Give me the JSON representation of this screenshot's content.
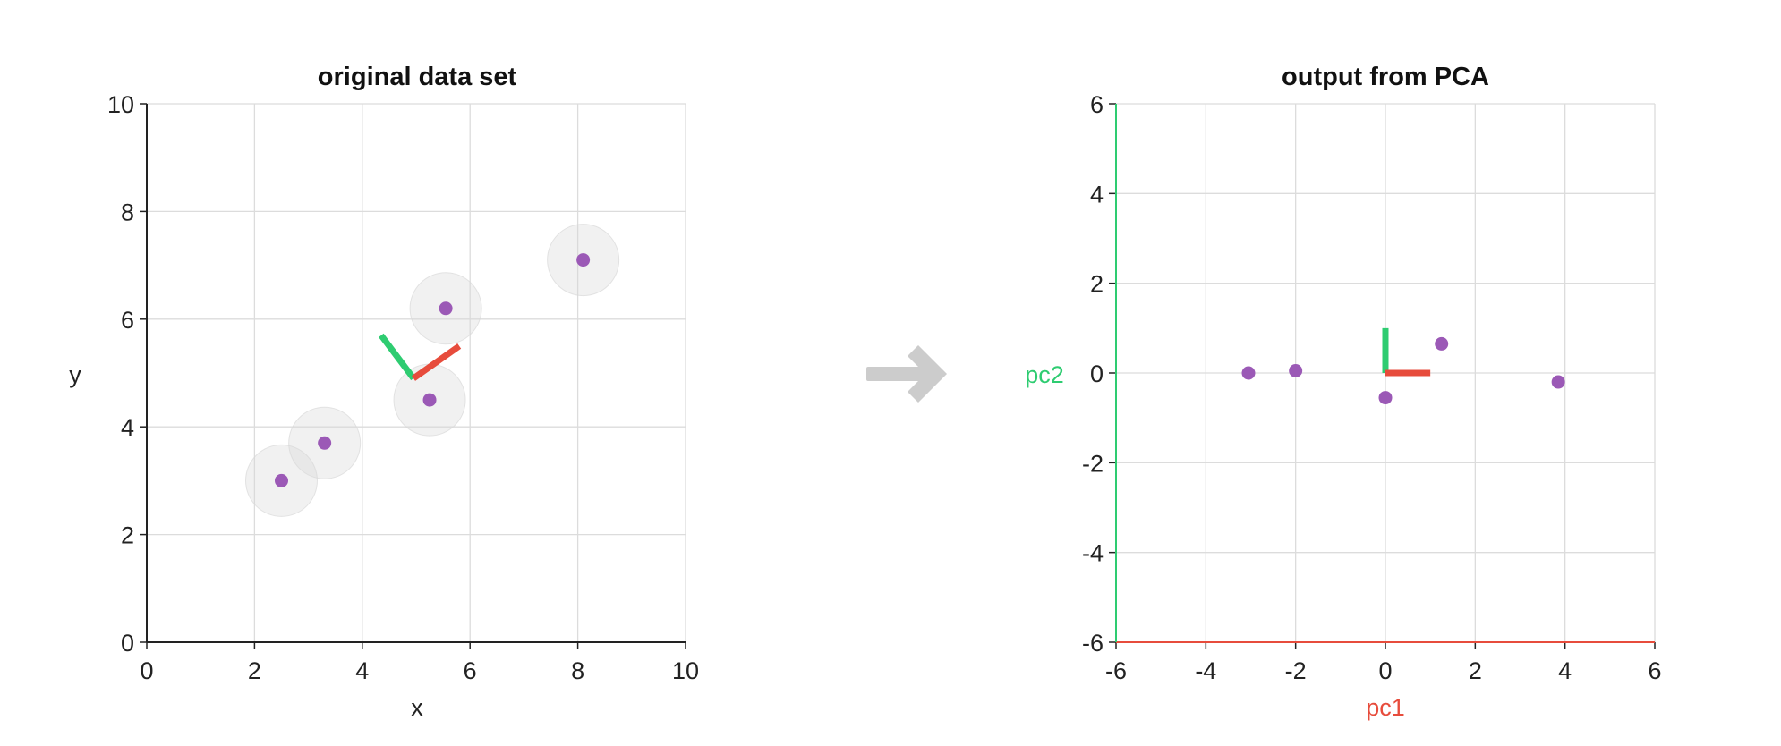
{
  "chart_data": [
    {
      "type": "scatter",
      "title": "original data set",
      "xlabel": "x",
      "ylabel": "y",
      "xlim": [
        0,
        10
      ],
      "ylim": [
        0,
        10
      ],
      "xticks": [
        "0",
        "2",
        "4",
        "6",
        "8",
        "10"
      ],
      "yticks": [
        "0",
        "2",
        "4",
        "6",
        "8",
        "10"
      ],
      "grid": true,
      "points": [
        {
          "x": 2.5,
          "y": 3.0
        },
        {
          "x": 3.3,
          "y": 3.7
        },
        {
          "x": 5.25,
          "y": 4.5
        },
        {
          "x": 5.55,
          "y": 6.2
        },
        {
          "x": 8.1,
          "y": 7.1
        }
      ],
      "principal_axes": {
        "origin": {
          "x": 4.95,
          "y": 4.9
        },
        "pc1_end": {
          "x": 5.8,
          "y": 5.5
        },
        "pc2_end": {
          "x": 4.35,
          "y": 5.7
        }
      }
    },
    {
      "type": "scatter",
      "title": "output from PCA",
      "xlabel": "pc1",
      "ylabel": "pc2",
      "xlim": [
        -6,
        6
      ],
      "ylim": [
        -6,
        6
      ],
      "xticks": [
        "-6",
        "-4",
        "-2",
        "0",
        "2",
        "4",
        "6"
      ],
      "yticks": [
        "-6",
        "-4",
        "-2",
        "0",
        "2",
        "4",
        "6"
      ],
      "grid": true,
      "points": [
        {
          "x": -3.05,
          "y": 0.0
        },
        {
          "x": -2.0,
          "y": 0.05
        },
        {
          "x": 0.0,
          "y": -0.55
        },
        {
          "x": 1.25,
          "y": 0.65
        },
        {
          "x": 3.85,
          "y": -0.2
        }
      ],
      "principal_axes": {
        "origin": {
          "x": 0.0,
          "y": 0.0
        },
        "pc1_end": {
          "x": 1.0,
          "y": 0.0
        },
        "pc2_end": {
          "x": 0.0,
          "y": 1.0
        }
      }
    }
  ],
  "colors": {
    "point": "#9b59b6",
    "pc1": "#e74c3c",
    "pc2": "#2ecc71",
    "halo": "#d8d8d8",
    "arrow": "#cccccc",
    "axis": "#222222"
  },
  "icons": {
    "transform_arrow": "right-arrow-icon"
  }
}
